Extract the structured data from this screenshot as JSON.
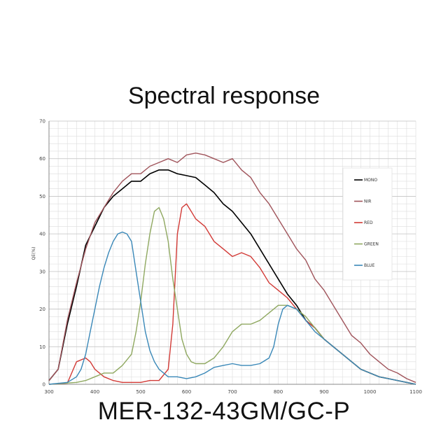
{
  "chart_data": {
    "type": "line",
    "title": "Spectral response",
    "subtitle": "MER-132-43GM/GC-P",
    "xlabel": "",
    "ylabel": "QE(%)",
    "xlim": [
      300,
      1100
    ],
    "ylim": [
      0,
      70
    ],
    "xticks": [
      "300",
      "400",
      "500",
      "600",
      "700",
      "800",
      "900",
      "1000",
      "1100"
    ],
    "yticks": [
      "0",
      "10",
      "20",
      "30",
      "40",
      "50",
      "60",
      "70"
    ],
    "grid": true,
    "legend_position": "right",
    "series": [
      {
        "name": "MONO",
        "color": "#000000",
        "x": [
          300,
          320,
          340,
          360,
          380,
          400,
          420,
          440,
          460,
          480,
          500,
          520,
          540,
          560,
          580,
          600,
          620,
          640,
          660,
          680,
          700,
          720,
          740,
          760,
          780,
          800,
          820,
          840,
          860,
          880,
          900,
          920,
          940,
          960,
          980,
          1000,
          1020,
          1040,
          1060,
          1080,
          1100
        ],
        "y": [
          1,
          4,
          16,
          26,
          37,
          42,
          47,
          50,
          52,
          54,
          54,
          56,
          57,
          57,
          56,
          55.5,
          55,
          53,
          51,
          48,
          46,
          43,
          40,
          36,
          32,
          28,
          24,
          21,
          17,
          15,
          12,
          10,
          8,
          6,
          4,
          3,
          2,
          1.5,
          1,
          0.5,
          0
        ]
      },
      {
        "name": "NIR",
        "color": "#a0545b",
        "x": [
          300,
          320,
          340,
          360,
          380,
          400,
          420,
          440,
          460,
          480,
          500,
          520,
          540,
          560,
          580,
          600,
          620,
          640,
          660,
          680,
          700,
          720,
          740,
          760,
          780,
          800,
          820,
          840,
          860,
          880,
          900,
          920,
          940,
          960,
          980,
          1000,
          1020,
          1040,
          1060,
          1080,
          1100
        ],
        "y": [
          1,
          4,
          17,
          27,
          36,
          43,
          47,
          51,
          54,
          56,
          56,
          58,
          59,
          60,
          59,
          61,
          61.5,
          61,
          60,
          59,
          60,
          57,
          55,
          51,
          48,
          44,
          40,
          36,
          33,
          28,
          25,
          21,
          17,
          13,
          11,
          8,
          6,
          4,
          3,
          1.5,
          0.5
        ]
      },
      {
        "name": "RED",
        "color": "#d23a36",
        "x": [
          300,
          340,
          360,
          380,
          390,
          400,
          410,
          420,
          440,
          460,
          480,
          500,
          520,
          540,
          560,
          570,
          580,
          590,
          600,
          610,
          620,
          640,
          660,
          680,
          700,
          720,
          740,
          760,
          780,
          800,
          820,
          840,
          860,
          880,
          900,
          920,
          940,
          960,
          980,
          1000,
          1020,
          1040,
          1060,
          1080,
          1100
        ],
        "y": [
          0,
          0.3,
          6,
          7,
          6,
          4,
          3,
          2,
          1,
          0.5,
          0.5,
          0.5,
          1,
          1,
          4,
          16,
          40,
          47,
          48,
          46,
          44,
          42,
          38,
          36,
          34,
          35,
          34,
          31,
          27,
          25,
          23,
          20,
          17,
          15,
          12,
          10,
          8,
          6,
          4,
          3,
          2,
          1.5,
          1,
          0.5,
          0
        ]
      },
      {
        "name": "GREEN",
        "color": "#8fa860",
        "x": [
          300,
          360,
          380,
          400,
          420,
          440,
          460,
          480,
          490,
          500,
          510,
          520,
          530,
          540,
          550,
          560,
          570,
          580,
          590,
          600,
          610,
          620,
          640,
          660,
          680,
          700,
          720,
          740,
          760,
          780,
          800,
          820,
          840,
          860,
          880,
          900,
          920,
          940,
          960,
          980,
          1000,
          1020,
          1040,
          1060,
          1080,
          1100
        ],
        "y": [
          0,
          0.5,
          1,
          2,
          3,
          3,
          5,
          8,
          14,
          22,
          32,
          40,
          46,
          47,
          44,
          38,
          28,
          20,
          12,
          8,
          6,
          5.5,
          5.5,
          7,
          10,
          14,
          16,
          16,
          17,
          19,
          21,
          21,
          20,
          18,
          15,
          12,
          10,
          8,
          6,
          4,
          3,
          2,
          1.5,
          1,
          0.5,
          0
        ]
      },
      {
        "name": "BLUE",
        "color": "#3a88b8",
        "x": [
          300,
          340,
          360,
          370,
          380,
          390,
          400,
          410,
          420,
          430,
          440,
          450,
          460,
          470,
          480,
          490,
          500,
          510,
          520,
          530,
          540,
          550,
          560,
          580,
          600,
          620,
          640,
          660,
          680,
          700,
          720,
          740,
          760,
          780,
          790,
          800,
          810,
          820,
          840,
          860,
          880,
          900,
          920,
          940,
          960,
          980,
          1000,
          1020,
          1040,
          1060,
          1080,
          1100
        ],
        "y": [
          0,
          0.5,
          2,
          4,
          8,
          14,
          20,
          26,
          31,
          35,
          38,
          40,
          40.5,
          40,
          38,
          30,
          22,
          14,
          9,
          6,
          4,
          3,
          2,
          2,
          1.5,
          2,
          3,
          4.5,
          5,
          5.5,
          5,
          5,
          5.5,
          7,
          10,
          16,
          20,
          21,
          20,
          17,
          14,
          12,
          10,
          8,
          6,
          4,
          3,
          2,
          1.5,
          1,
          0.5,
          0
        ]
      }
    ]
  }
}
